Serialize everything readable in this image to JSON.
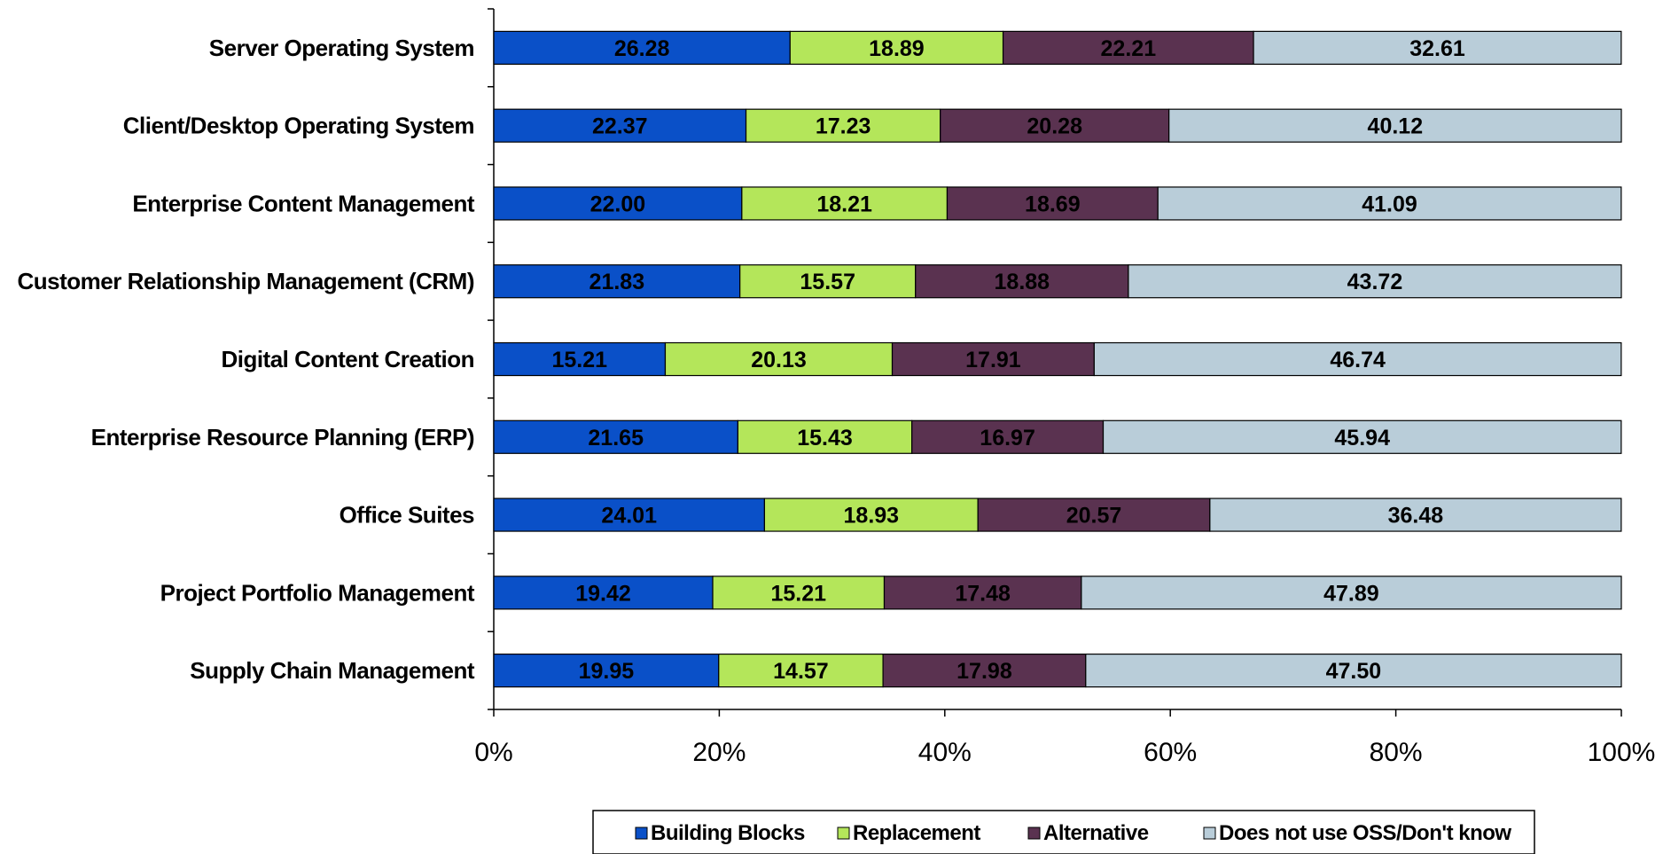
{
  "chart_data": {
    "type": "bar",
    "orientation": "horizontal",
    "stacked": "percent",
    "categories": [
      "Server Operating System",
      "Client/Desktop Operating System",
      "Enterprise Content Management",
      "Customer Relationship Management (CRM)",
      "Digital Content Creation",
      "Enterprise Resource Planning (ERP)",
      "Office Suites",
      "Project Portfolio Management",
      "Supply Chain Management"
    ],
    "series": [
      {
        "name": "Building Blocks",
        "color": "#0a50c8",
        "values": [
          26.28,
          22.37,
          22.0,
          21.83,
          15.21,
          21.65,
          24.01,
          19.42,
          19.95
        ],
        "labels": [
          "26.28",
          "22.37",
          "22.00",
          "21.83",
          "15.21",
          "21.65",
          "24.01",
          "19.42",
          "19.95"
        ]
      },
      {
        "name": "Replacement",
        "color": "#b4e65a",
        "values": [
          18.89,
          17.23,
          18.21,
          15.57,
          20.13,
          15.43,
          18.93,
          15.21,
          14.57
        ],
        "labels": [
          "18.89",
          "17.23",
          "18.21",
          "15.57",
          "20.13",
          "15.43",
          "18.93",
          "15.21",
          "14.57"
        ]
      },
      {
        "name": "Alternative",
        "color": "#5a3250",
        "values": [
          22.21,
          20.28,
          18.69,
          18.88,
          17.91,
          16.97,
          20.57,
          17.48,
          17.98
        ],
        "labels": [
          "22.21",
          "20.28",
          "18.69",
          "18.88",
          "17.91",
          "16.97",
          "20.57",
          "17.48",
          "17.98"
        ]
      },
      {
        "name": "Does not use OSS/Don't know",
        "color": "#b9cdd9",
        "values": [
          32.61,
          40.12,
          41.09,
          43.72,
          46.74,
          45.94,
          36.48,
          47.89,
          47.5
        ],
        "labels": [
          "32.61",
          "40.12",
          "41.09",
          "43.72",
          "46.74",
          "45.94",
          "36.48",
          "47.89",
          "47.50"
        ]
      }
    ],
    "xlim": [
      0,
      100
    ],
    "xticks": [
      {
        "value": 0,
        "label": "0%"
      },
      {
        "value": 20,
        "label": "20%"
      },
      {
        "value": 40,
        "label": "40%"
      },
      {
        "value": 60,
        "label": "60%"
      },
      {
        "value": 80,
        "label": "80%"
      },
      {
        "value": 100,
        "label": "100%"
      }
    ],
    "grid": false,
    "legend_position": "bottom"
  }
}
